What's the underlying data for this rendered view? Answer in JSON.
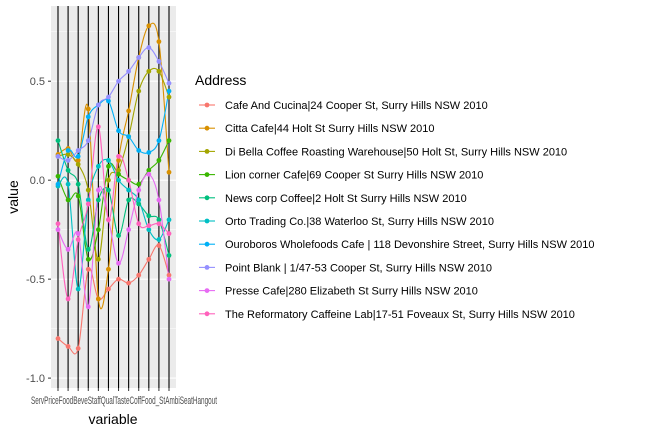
{
  "chart_data": {
    "type": "line",
    "title": "",
    "xlabel": "variable",
    "ylabel": "value",
    "ylim": [
      -1.05,
      0.88
    ],
    "y_ticks": [
      -1.0,
      -0.5,
      0.0,
      0.5
    ],
    "y_tick_labels": [
      "-1.0",
      "-0.5",
      "0.0",
      "0.5"
    ],
    "grid": true,
    "legend_position": "right",
    "legend_title": "Address",
    "categories": [
      "Service",
      "Price",
      "Food",
      "Beverage",
      "Staff",
      "Quality",
      "Taste",
      "Coffee",
      "Food_St",
      "Ambience",
      "Seating",
      "Hangout"
    ],
    "category_label_text": "ServPriceFoodBeveStaffQualTasteCoffFood_StAmbiSeatHangout",
    "series": [
      {
        "name": "Cafe And Cucina|24 Cooper St, Surry Hills NSW 2010",
        "color": "#F8766D",
        "values": [
          -0.8,
          -0.84,
          -0.85,
          -0.45,
          -0.6,
          -0.55,
          -0.5,
          -0.52,
          -0.48,
          -0.4,
          -0.33,
          -0.48
        ]
      },
      {
        "name": "Citta Cafe|44 Holt St Surry Hills NSW 2010",
        "color": "#D89000",
        "values": [
          0.13,
          0.16,
          0.1,
          0.36,
          -0.6,
          -0.45,
          0.1,
          0.35,
          0.62,
          0.78,
          0.7,
          0.04
        ]
      },
      {
        "name": "Di Bella Coffee Roasting Warehouse|50 Holt St, Surry Hills NSW 2010",
        "color": "#A3A500",
        "values": [
          0.12,
          0.13,
          0.08,
          -0.05,
          -0.4,
          0.0,
          0.05,
          0.22,
          0.45,
          0.55,
          0.55,
          0.42
        ]
      },
      {
        "name": "Lion corner Cafe|69 Cooper St Surry Hills NSW 2010",
        "color": "#39B600",
        "values": [
          0.02,
          -0.1,
          -0.08,
          -0.4,
          -0.25,
          0.07,
          0.03,
          0.0,
          -0.02,
          0.05,
          0.1,
          0.2
        ]
      },
      {
        "name": "News corp Coffee|2 Holt St Surry Hills NSW 2010",
        "color": "#00BF7D",
        "values": [
          0.2,
          0.05,
          -0.02,
          -0.35,
          -0.1,
          -0.05,
          -0.28,
          -0.1,
          -0.12,
          -0.18,
          -0.2,
          -0.38
        ]
      },
      {
        "name": "Orto Trading Co.|38 Waterloo St, Surry Hills NSW 2010",
        "color": "#00BFC4",
        "values": [
          -0.03,
          -0.02,
          -0.55,
          -0.1,
          0.07,
          0.1,
          0.0,
          -0.05,
          -0.1,
          -0.25,
          -0.3,
          -0.2
        ]
      },
      {
        "name": "Ouroboros Wholefoods Cafe | 118 Devonshire Street, Surry Hills NSW 2010",
        "color": "#00B0F6",
        "values": [
          -0.02,
          0.15,
          0.12,
          0.32,
          0.38,
          0.4,
          0.25,
          0.22,
          0.15,
          0.14,
          0.2,
          0.45
        ]
      },
      {
        "name": "Point Blank | 1/47-53 Cooper St, Surry Hills NSW 2010",
        "color": "#9590FF",
        "values": [
          0.12,
          0.1,
          0.15,
          0.2,
          0.38,
          0.42,
          0.5,
          0.55,
          0.62,
          0.67,
          0.6,
          0.49
        ]
      },
      {
        "name": "Presse Cafe|280 Elizabeth St Surry Hills NSW 2010",
        "color": "#E76BF3",
        "values": [
          -0.25,
          -0.35,
          -0.27,
          -0.64,
          -0.05,
          -0.2,
          -0.42,
          -0.25,
          -0.05,
          0.03,
          -0.1,
          -0.5
        ]
      },
      {
        "name": "The Reformatory Caffeine Lab|17-51 Foveaux St, Surry Hills NSW 2010",
        "color": "#FF62BC",
        "values": [
          -0.22,
          -0.6,
          -0.3,
          -0.12,
          0.27,
          -0.2,
          0.12,
          0.0,
          -0.22,
          -0.23,
          -0.22,
          -0.27
        ]
      }
    ]
  }
}
